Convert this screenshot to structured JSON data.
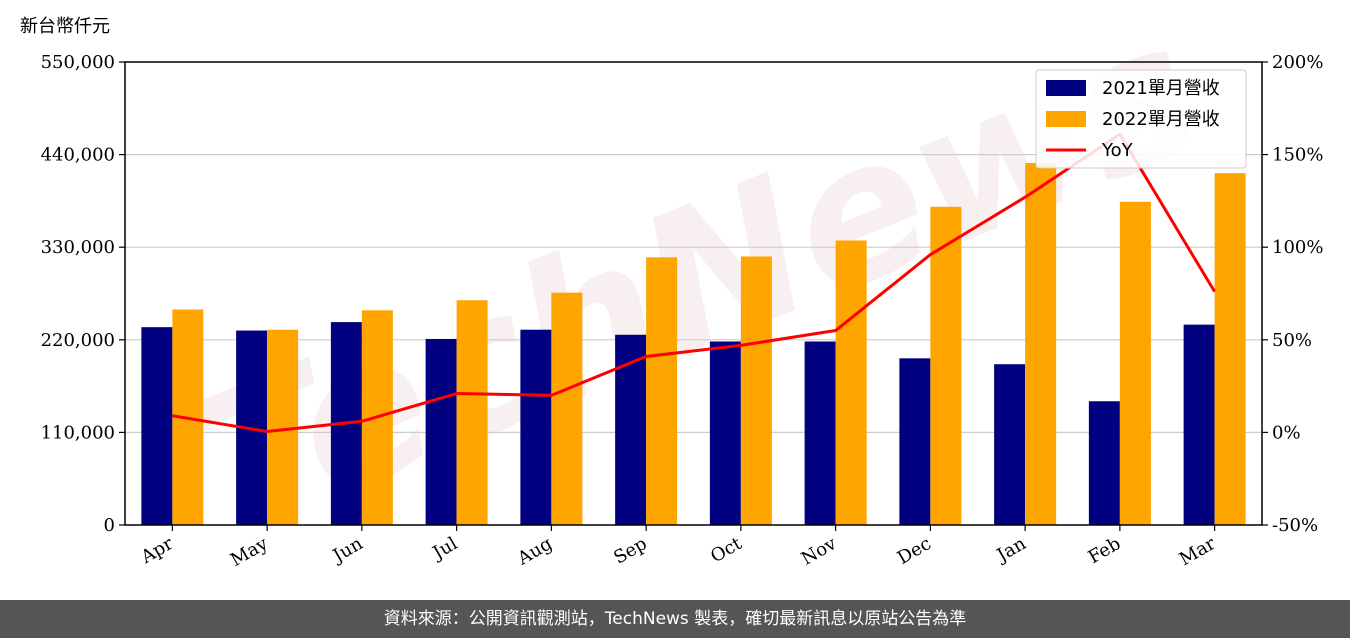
{
  "chart_data": {
    "type": "bar",
    "title": "",
    "xlabel": "",
    "ylabel": "新台幣仟元",
    "categories": [
      "Apr",
      "May",
      "Jun",
      "Jul",
      "Aug",
      "Sep",
      "Oct",
      "Nov",
      "Dec",
      "Jan",
      "Feb",
      "Mar"
    ],
    "series": [
      {
        "name": "2021單月營收",
        "type": "bar",
        "axis": "left",
        "color": "#000080",
        "values": [
          235000,
          231000,
          241000,
          221000,
          232000,
          226000,
          218000,
          218000,
          198000,
          191000,
          147000,
          238000
        ]
      },
      {
        "name": "2022單月營收",
        "type": "bar",
        "axis": "left",
        "color": "#FFA500",
        "values": [
          256000,
          232000,
          255000,
          267000,
          276000,
          318000,
          319000,
          338000,
          378000,
          430000,
          384000,
          418000
        ]
      },
      {
        "name": "YoY",
        "type": "line",
        "axis": "right",
        "color": "#FF0000",
        "values": [
          9,
          0.5,
          6,
          21,
          20,
          41,
          47,
          55,
          96,
          127,
          161,
          76
        ]
      }
    ],
    "ylim": [
      0,
      550000
    ],
    "yticks": [
      "0",
      "110,000",
      "220,000",
      "330,000",
      "440,000",
      "550,000"
    ],
    "y2lim": [
      -50,
      200
    ],
    "y2ticks": [
      "-50%",
      "0%",
      "50%",
      "100%",
      "150%",
      "200%"
    ],
    "grid": "horizontal",
    "legend": "top-right"
  },
  "watermark": "TechNews",
  "footer": {
    "text": "資料來源：公開資訊觀測站，TechNews 製表，確切最新訊息以原站公告為準"
  }
}
